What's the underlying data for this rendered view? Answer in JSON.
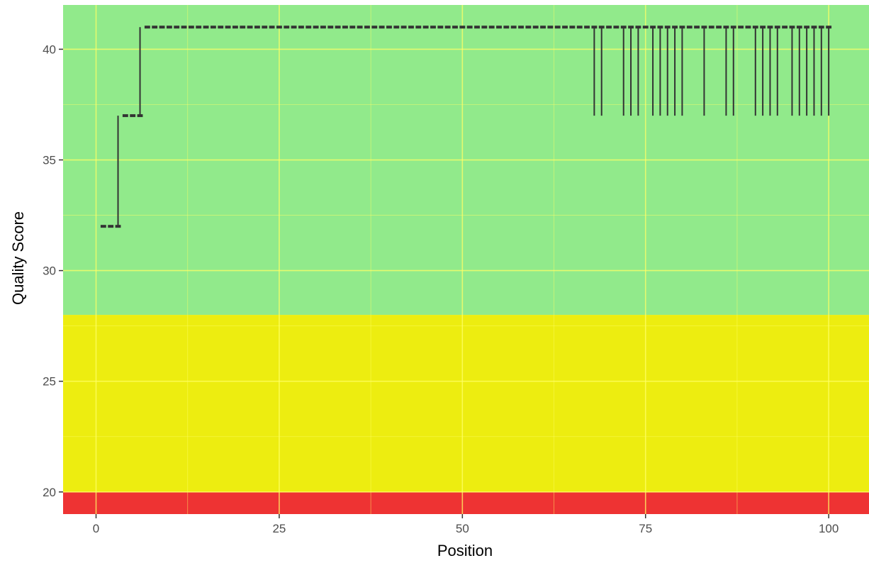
{
  "chart_data": {
    "type": "box",
    "title": "",
    "xlabel": "Position",
    "ylabel": "Quality Score",
    "xlim": [
      -4.5,
      105.5
    ],
    "ylim": [
      19.0,
      42.0
    ],
    "x_ticks": [
      0,
      25,
      50,
      75,
      100
    ],
    "y_ticks": [
      20,
      25,
      30,
      35,
      40
    ],
    "grid": true,
    "legend": "none",
    "background_bands": [
      {
        "from": 19.0,
        "to": 20.0,
        "color": "#ee3333"
      },
      {
        "from": 20.0,
        "to": 28.0,
        "color": "#eded10"
      },
      {
        "from": 28.0,
        "to": 42.0,
        "color": "#91ea8b"
      }
    ],
    "colors": {
      "box": "#333333",
      "grid": "#ffff66"
    },
    "box_summary": {
      "description_note": "Each position: median, quartiles and whiskers (quality score)",
      "positions": [
        1,
        2,
        3,
        4,
        5,
        6,
        7,
        8,
        9,
        10,
        11,
        12,
        13,
        14,
        15,
        16,
        17,
        18,
        19,
        20,
        21,
        22,
        23,
        24,
        25,
        26,
        27,
        28,
        29,
        30,
        31,
        32,
        33,
        34,
        35,
        36,
        37,
        38,
        39,
        40,
        41,
        42,
        43,
        44,
        45,
        46,
        47,
        48,
        49,
        50,
        51,
        52,
        53,
        54,
        55,
        56,
        57,
        58,
        59,
        60,
        61,
        62,
        63,
        64,
        65,
        66,
        67,
        68,
        69,
        70,
        71,
        72,
        73,
        74,
        75,
        76,
        77,
        78,
        79,
        80,
        81,
        82,
        83,
        84,
        85,
        86,
        87,
        88,
        89,
        90,
        91,
        92,
        93,
        94,
        95,
        96,
        97,
        98,
        99,
        100
      ],
      "low_values": {
        "1": 32,
        "2": 32,
        "3": 32,
        "4": 37,
        "5": 37,
        "6": 37
      },
      "low_whisker_positions": [
        68,
        69,
        72,
        73,
        74,
        76,
        77,
        78,
        79,
        80,
        83,
        86,
        87,
        90,
        91,
        92,
        93,
        95,
        96,
        97,
        98,
        99,
        100
      ],
      "default_high": 41,
      "low_whisker_value": 37
    }
  }
}
